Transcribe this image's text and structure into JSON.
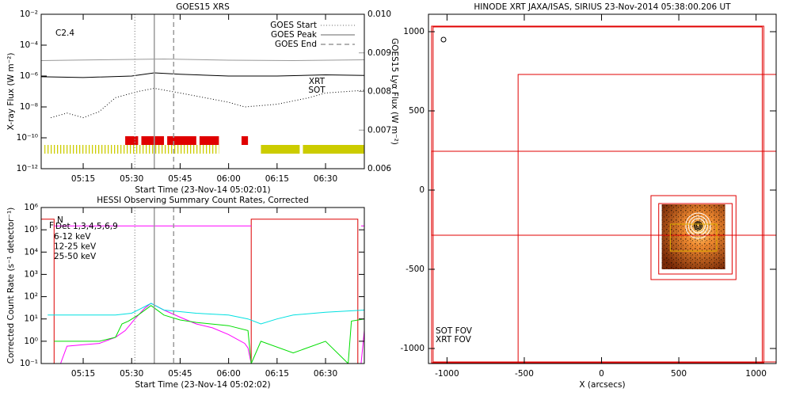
{
  "chart_data": [
    {
      "type": "line",
      "title": "GOES15 XRS",
      "annotation": "C2.4",
      "xlabel": "Start Time (23-Nov-14 05:02:01)",
      "ylabel": "X-ray Flux (W m⁻²)",
      "y2label": "GOES15 Lyα Flux (W m⁻²)",
      "xlim": [
        "05:02",
        "06:42"
      ],
      "xticks": [
        "05:15",
        "05:30",
        "05:45",
        "06:00",
        "06:15",
        "06:30"
      ],
      "log_y": true,
      "ylim": [
        1e-12,
        0.01
      ],
      "yticks": [
        {
          "value": 1e-12,
          "label": "10⁻¹²"
        },
        {
          "value": 1e-10,
          "label": "10⁻¹⁰"
        },
        {
          "value": 1e-08,
          "label": "10⁻⁸"
        },
        {
          "value": 1e-06,
          "label": "10⁻⁶"
        },
        {
          "value": 0.0001,
          "label": "10⁻⁴"
        },
        {
          "value": 0.01,
          "label": "10⁻²"
        }
      ],
      "y2lim": [
        0.006,
        0.01
      ],
      "y2ticks": [
        0.006,
        0.007,
        0.008,
        0.009,
        {
          "value": 0.01,
          "label": "0.010"
        }
      ],
      "series": [
        {
          "color": "#000000",
          "style": "solid",
          "x": [
            "05:02",
            "05:15",
            "05:30",
            "05:37",
            "05:45",
            "06:00",
            "06:15",
            "06:30",
            "06:42"
          ],
          "values": [
            9e-07,
            8e-07,
            1e-06,
            1.6e-06,
            1.3e-06,
            1e-06,
            1e-06,
            1.2e-06,
            1.1e-06
          ]
        },
        {
          "color": "#000000",
          "style": "dotted",
          "x": [
            "05:05",
            "05:10",
            "05:15",
            "05:20",
            "05:25",
            "05:32",
            "05:37",
            "05:45",
            "06:00",
            "06:05",
            "06:15",
            "06:25",
            "06:30",
            "06:42"
          ],
          "values": [
            2e-09,
            4e-09,
            2e-09,
            5e-09,
            4e-08,
            1e-07,
            1.6e-07,
            8e-08,
            2e-08,
            1e-08,
            1.5e-08,
            4e-08,
            8e-08,
            1.2e-07
          ]
        },
        {
          "color": "#999999",
          "style": "solid",
          "axis": "y2",
          "x": [
            "05:02",
            "05:20",
            "05:40",
            "06:00",
            "06:20",
            "06:42"
          ],
          "values": [
            0.0088,
            0.00882,
            0.00884,
            0.00881,
            0.0088,
            0.00882
          ]
        }
      ],
      "markers": [
        {
          "name": "GOES Start",
          "x": "05:31",
          "style": "dotted"
        },
        {
          "name": "GOES Peak",
          "x": "05:37",
          "style": "solid"
        },
        {
          "name": "GOES End",
          "x": "05:43",
          "style": "dashed"
        }
      ],
      "observations": [
        {
          "name": "XRT",
          "color": "#e00000",
          "dense": [
            [
              "05:28",
              "05:32"
            ],
            [
              "05:33",
              "05:40"
            ],
            [
              "05:41",
              "05:50"
            ],
            [
              "05:51",
              "05:57"
            ],
            [
              "06:04",
              "06:06"
            ]
          ],
          "sparse": []
        },
        {
          "name": "SOT",
          "color": "#cccc00",
          "dense": [
            [
              "06:10",
              "06:22"
            ],
            [
              "06:23",
              "06:42"
            ]
          ],
          "sparse": [
            [
              "05:03",
              "05:57"
            ]
          ]
        }
      ]
    },
    {
      "type": "line",
      "title": "HESSI Observing Summary Count Rates, Corrected",
      "annotation": "Det 1,3,4,5,6,9",
      "xlabel": "Start Time (23-Nov-14 05:02:02)",
      "ylabel": "Corrected Count Rate (s⁻¹ detector⁻¹)",
      "xlim": [
        "05:02",
        "06:42"
      ],
      "xticks": [
        "05:15",
        "05:30",
        "05:45",
        "06:00",
        "06:15",
        "06:30"
      ],
      "log_y": true,
      "ylim": [
        0.1,
        1000000
      ],
      "yticks": [
        {
          "value": 0.1,
          "label": "10⁻¹"
        },
        {
          "value": 1,
          "label": "10⁰"
        },
        {
          "value": 10,
          "label": "10¹"
        },
        {
          "value": 100,
          "label": "10²"
        },
        {
          "value": 1000,
          "label": "10³"
        },
        {
          "value": 10000,
          "label": "10⁴"
        },
        {
          "value": 100000,
          "label": "10⁵"
        },
        {
          "value": 1000000,
          "label": "10⁶"
        }
      ],
      "flags": [
        {
          "name": "N",
          "color": "#dd0000",
          "x": [
            "05:02",
            "05:06",
            "05:06",
            "06:07",
            "06:07",
            "06:40",
            "06:40"
          ],
          "values": [
            300000,
            300000,
            0.1,
            0.1,
            300000,
            300000,
            0.1
          ]
        },
        {
          "name": "F",
          "color": "#ff00ff",
          "x": [
            "05:06",
            "06:07",
            "06:41",
            "06:41",
            "06:42"
          ],
          "values": [
            150000,
            150000,
            null,
            150000,
            150000
          ]
        }
      ],
      "series": [
        {
          "name": "6-12 keV",
          "color": "#ff00ff",
          "style": "solid",
          "x": [
            "05:06",
            "05:08",
            "05:10",
            "05:15",
            "05:20",
            "05:25",
            "05:28",
            "05:31",
            "05:34",
            "05:36",
            "05:40",
            "05:45",
            "05:50",
            "05:55",
            "06:00",
            "06:05",
            "06:06",
            "06:07",
            "06:39",
            "06:41",
            "06:42"
          ],
          "values": [
            0.1,
            0.1,
            0.6,
            0.7,
            0.8,
            1.5,
            3,
            10,
            30,
            50,
            25,
            12,
            6,
            4,
            2,
            0.8,
            0.5,
            0.1,
            null,
            0.1,
            3
          ]
        },
        {
          "name": "12-25 keV",
          "color": "#00dd00",
          "style": "solid",
          "x": [
            "05:06",
            "05:10",
            "05:20",
            "05:25",
            "05:27",
            "05:29",
            "05:32",
            "05:36",
            "05:40",
            "05:45",
            "05:50",
            "06:00",
            "06:06",
            "06:07",
            "06:10",
            "06:20",
            "06:30",
            "06:37",
            "06:38",
            "06:42"
          ],
          "values": [
            1,
            1,
            1,
            1.5,
            6,
            8,
            15,
            40,
            15,
            9,
            7,
            5,
            3,
            0.1,
            1,
            0.3,
            1,
            0.1,
            8,
            10
          ]
        },
        {
          "name": "25-50 keV",
          "color": "#00e0e0",
          "style": "solid",
          "x": [
            "05:04",
            "05:15",
            "05:25",
            "05:30",
            "05:33",
            "05:36",
            "05:40",
            "05:50",
            "06:00",
            "06:06",
            "06:10",
            "06:15",
            "06:20",
            "06:30",
            "06:42"
          ],
          "values": [
            15,
            15,
            15,
            18,
            30,
            50,
            25,
            18,
            15,
            10,
            6,
            10,
            15,
            20,
            25
          ]
        }
      ],
      "markers": [
        {
          "x": "05:31",
          "style": "dotted"
        },
        {
          "x": "05:37",
          "style": "solid"
        },
        {
          "x": "05:43",
          "style": "dashed"
        }
      ]
    },
    {
      "type": "image",
      "title": "HINODE XRT JAXA/ISAS, SIRIUS 23-Nov-2014 05:38:00.206 UT",
      "xlabel": "X (arcsecs)",
      "xlim": [
        -1120,
        1130
      ],
      "ylim": [
        -1095,
        1110
      ],
      "xticks": [
        -1000,
        -500,
        0,
        500,
        1000
      ],
      "yticks": [
        -1000,
        -500,
        0,
        500,
        1000
      ],
      "image": {
        "x": [
          390,
          800
        ],
        "y": [
          -500,
          -90
        ]
      },
      "contours": {
        "center": [
          625,
          -225
        ],
        "levels": [
          {
            "color": "#000000",
            "radii": [
              10,
              18,
              26
            ]
          },
          {
            "color": "#ffffff",
            "radii": [
              45,
              62,
              80
            ]
          }
        ]
      },
      "rectangles": [
        {
          "color": "#e00000",
          "x": [
            -1100,
            1050
          ],
          "y": [
            -1090,
            1035
          ]
        },
        {
          "color": "#e00000",
          "x": [
            -1090,
            1040
          ],
          "y": [
            -1085,
            1030
          ]
        },
        {
          "color": "#e00000",
          "x": [
            -540,
            1130
          ],
          "y": [
            -1085,
            730
          ]
        },
        {
          "color": "#e00000",
          "x": [
            -1100,
            1130
          ],
          "y": [
            -285,
            245
          ]
        },
        {
          "color": "#e00000",
          "x": [
            320,
            870
          ],
          "y": [
            -565,
            -35
          ]
        },
        {
          "color": "#e00000",
          "x": [
            370,
            845
          ],
          "y": [
            -530,
            -85
          ]
        },
        {
          "color": "#e0b000",
          "x": [
            445,
            745
          ],
          "y": [
            -385,
            -215
          ]
        }
      ],
      "annotations": [
        {
          "text": "SOT FOV",
          "color": "#d4b000"
        },
        {
          "text": "XRT FOV",
          "color": "#c00000"
        }
      ]
    }
  ]
}
